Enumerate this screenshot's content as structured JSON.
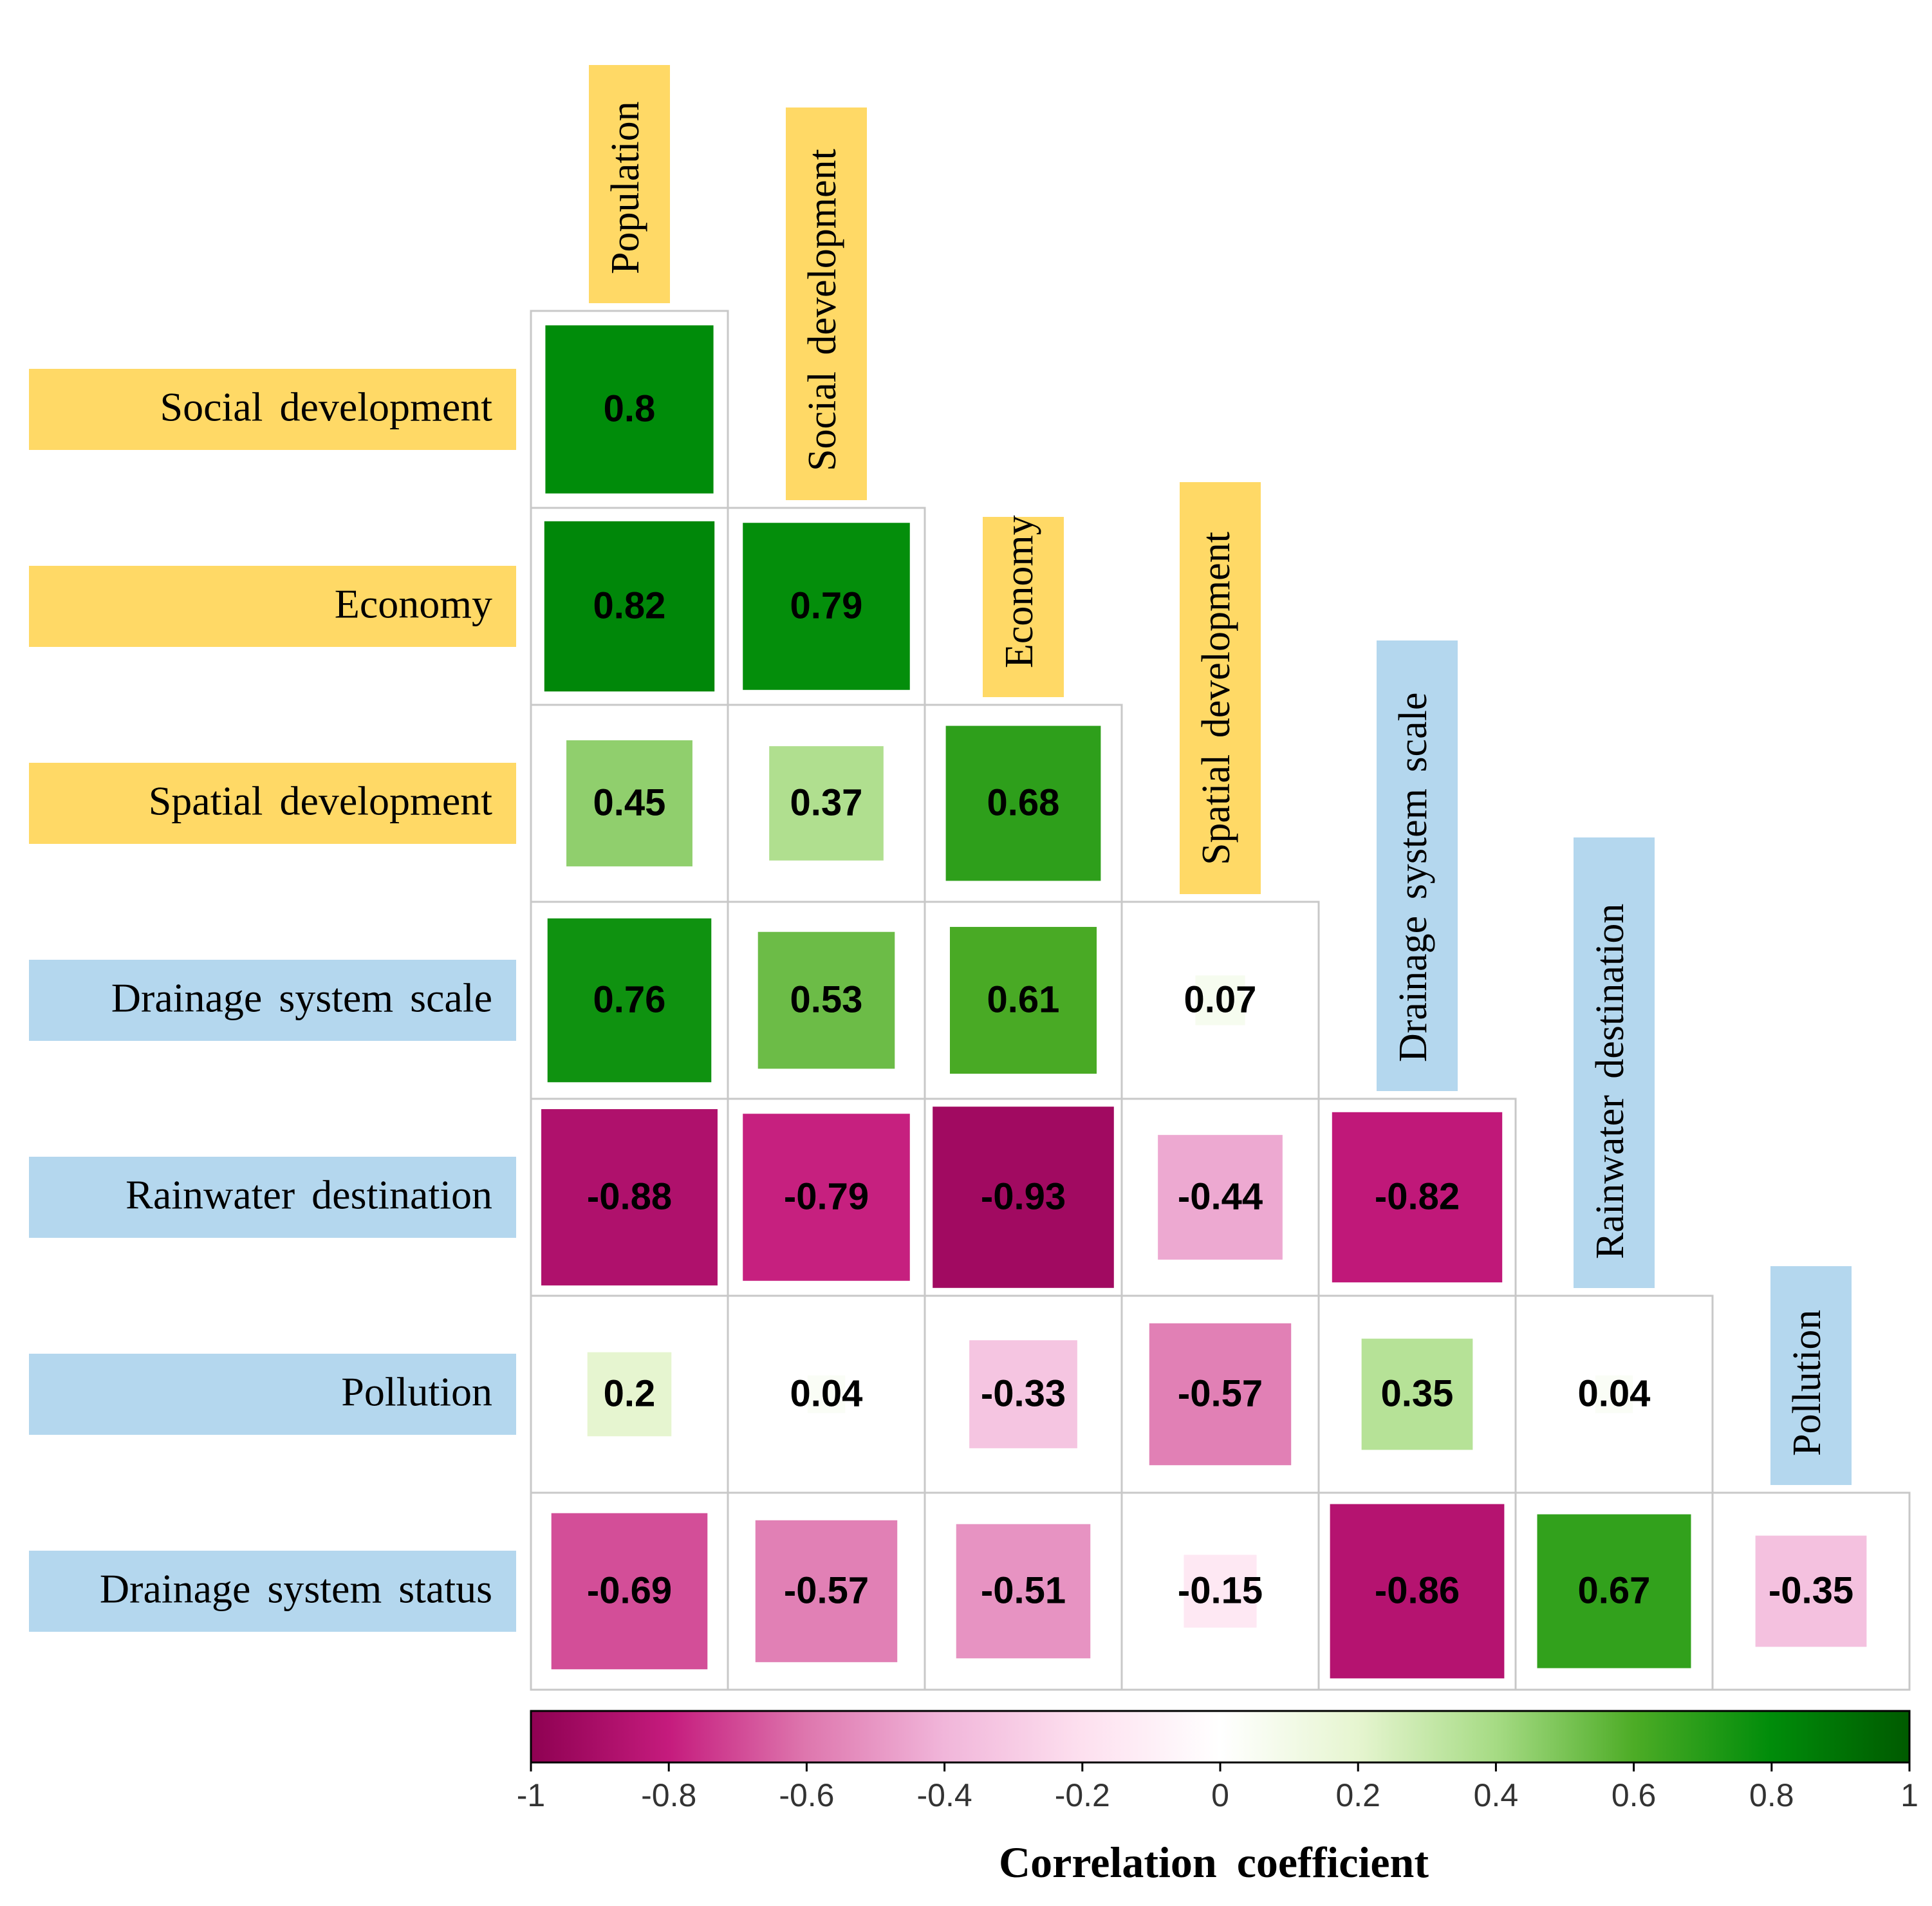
{
  "chart_data": {
    "type": "heatmap",
    "variables": [
      "Population",
      "Social development",
      "Economy",
      "Spatial development",
      "Drainage system scale",
      "Rainwater destination",
      "Pollution",
      "Drainage system status"
    ],
    "column_labels": [
      "Population",
      "Social development",
      "Economy",
      "Spatial development",
      "Drainage system scale",
      "Rainwater destination",
      "Pollution"
    ],
    "row_labels": [
      "Social development",
      "Economy",
      "Spatial development",
      "Drainage system scale",
      "Rainwater destination",
      "Pollution",
      "Drainage system status"
    ],
    "label_groups": {
      "Population": "yellow",
      "Social development": "yellow",
      "Economy": "yellow",
      "Spatial development": "yellow",
      "Drainage system scale": "blue",
      "Rainwater destination": "blue",
      "Pollution": "blue",
      "Drainage system status": "blue"
    },
    "group_colors": {
      "yellow": "#FFD966",
      "blue": "#B4D7EE"
    },
    "cells": [
      {
        "row": "Social development",
        "col": "Population",
        "value": 0.8,
        "label": "0.8"
      },
      {
        "row": "Economy",
        "col": "Population",
        "value": 0.82,
        "label": "0.82"
      },
      {
        "row": "Economy",
        "col": "Social development",
        "value": 0.79,
        "label": "0.79"
      },
      {
        "row": "Spatial development",
        "col": "Population",
        "value": 0.45,
        "label": "0.45"
      },
      {
        "row": "Spatial development",
        "col": "Social development",
        "value": 0.37,
        "label": "0.37"
      },
      {
        "row": "Spatial development",
        "col": "Economy",
        "value": 0.68,
        "label": "0.68"
      },
      {
        "row": "Drainage system scale",
        "col": "Population",
        "value": 0.76,
        "label": "0.76"
      },
      {
        "row": "Drainage system scale",
        "col": "Social development",
        "value": 0.53,
        "label": "0.53"
      },
      {
        "row": "Drainage system scale",
        "col": "Economy",
        "value": 0.61,
        "label": "0.61"
      },
      {
        "row": "Drainage system scale",
        "col": "Spatial development",
        "value": 0.07,
        "label": "0.07"
      },
      {
        "row": "Rainwater destination",
        "col": "Population",
        "value": -0.88,
        "label": "-0.88"
      },
      {
        "row": "Rainwater destination",
        "col": "Social development",
        "value": -0.79,
        "label": "-0.79"
      },
      {
        "row": "Rainwater destination",
        "col": "Economy",
        "value": -0.93,
        "label": "-0.93"
      },
      {
        "row": "Rainwater destination",
        "col": "Spatial development",
        "value": -0.44,
        "label": "-0.44"
      },
      {
        "row": "Rainwater destination",
        "col": "Drainage system scale",
        "value": -0.82,
        "label": "-0.82"
      },
      {
        "row": "Pollution",
        "col": "Population",
        "value": 0.2,
        "label": "0.2"
      },
      {
        "row": "Pollution",
        "col": "Social development",
        "value": 0.04,
        "label": "0.04"
      },
      {
        "row": "Pollution",
        "col": "Economy",
        "value": -0.33,
        "label": "-0.33"
      },
      {
        "row": "Pollution",
        "col": "Spatial development",
        "value": -0.57,
        "label": "-0.57"
      },
      {
        "row": "Pollution",
        "col": "Drainage system scale",
        "value": 0.35,
        "label": "0.35"
      },
      {
        "row": "Pollution",
        "col": "Rainwater destination",
        "value": 0.04,
        "label": "0.04"
      },
      {
        "row": "Drainage system status",
        "col": "Population",
        "value": -0.69,
        "label": "-0.69"
      },
      {
        "row": "Drainage system status",
        "col": "Social development",
        "value": -0.57,
        "label": "-0.57"
      },
      {
        "row": "Drainage system status",
        "col": "Economy",
        "value": -0.51,
        "label": "-0.51"
      },
      {
        "row": "Drainage system status",
        "col": "Spatial development",
        "value": -0.15,
        "label": "-0.15"
      },
      {
        "row": "Drainage system status",
        "col": "Drainage system scale",
        "value": -0.86,
        "label": "-0.86"
      },
      {
        "row": "Drainage system status",
        "col": "Rainwater destination",
        "value": 0.67,
        "label": "0.67"
      },
      {
        "row": "Drainage system status",
        "col": "Pollution",
        "value": -0.35,
        "label": "-0.35"
      }
    ],
    "colorbar": {
      "title": "Correlation coefficient",
      "range": [
        -1,
        1
      ],
      "ticks": [
        -1,
        -0.8,
        -0.6,
        -0.4,
        -0.2,
        0,
        0.2,
        0.4,
        0.6,
        0.8,
        1
      ],
      "tick_labels": [
        "-1",
        "-0.8",
        "-0.6",
        "-0.4",
        "-0.2",
        "0",
        "0.2",
        "0.4",
        "0.6",
        "0.8",
        "1"
      ],
      "colors": [
        "#8E0152",
        "#C51B7D",
        "#DE77AE",
        "#F1B6DA",
        "#FDE0EF",
        "#FFFFFF",
        "#E6F5D0",
        "#A6DB84",
        "#4DAC26",
        "#008C0A",
        "#005A00"
      ]
    },
    "grid": true
  }
}
